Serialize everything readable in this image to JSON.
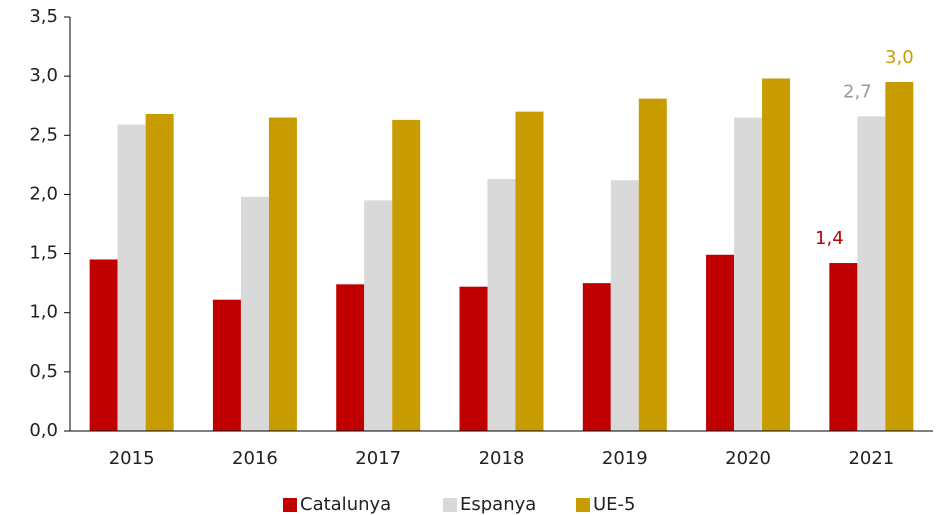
{
  "chart_data": {
    "type": "bar",
    "categories": [
      "2015",
      "2016",
      "2017",
      "2018",
      "2019",
      "2020",
      "2021"
    ],
    "series": [
      {
        "name": "Catalunya",
        "color": "#c00000",
        "values": [
          1.45,
          1.11,
          1.24,
          1.22,
          1.25,
          1.49,
          1.42
        ],
        "value_labels": [
          null,
          null,
          null,
          null,
          null,
          null,
          "1,4"
        ],
        "label_color": "#c00000"
      },
      {
        "name": "Espanya",
        "color": "#d9d9d9",
        "values": [
          2.59,
          1.98,
          1.95,
          2.13,
          2.12,
          2.65,
          2.66
        ],
        "value_labels": [
          null,
          null,
          null,
          null,
          null,
          null,
          "2,7"
        ],
        "label_color": "#999999"
      },
      {
        "name": "UE-5",
        "color": "#c89b00",
        "values": [
          2.68,
          2.65,
          2.63,
          2.7,
          2.81,
          2.98,
          2.95
        ],
        "value_labels": [
          null,
          null,
          null,
          null,
          null,
          null,
          "3,0"
        ],
        "label_color": "#c89b00"
      }
    ],
    "ylim": [
      0,
      3.5
    ],
    "yticks": [
      {
        "value": 0,
        "label": "0,0"
      },
      {
        "value": 0.5,
        "label": "0,5"
      },
      {
        "value": 1,
        "label": "1,0"
      },
      {
        "value": 1.5,
        "label": "1,5"
      },
      {
        "value": 2,
        "label": "2,0"
      },
      {
        "value": 2.5,
        "label": "2,5"
      },
      {
        "value": 3,
        "label": "3,0"
      },
      {
        "value": 3.5,
        "label": "3,5"
      }
    ],
    "grid": false,
    "legend": "bottom"
  }
}
